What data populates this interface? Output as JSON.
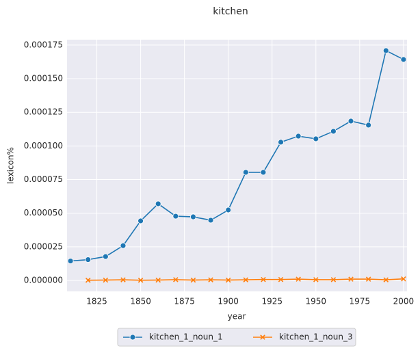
{
  "chart_data": {
    "type": "line",
    "title": "kitchen",
    "x_label": "year",
    "y_label": "lexicon%",
    "x": [
      1810,
      1820,
      1830,
      1840,
      1850,
      1860,
      1870,
      1880,
      1890,
      1900,
      1910,
      1920,
      1930,
      1940,
      1950,
      1960,
      1970,
      1980,
      1990,
      2000
    ],
    "series": [
      {
        "name": "kitchen_1_noun_1",
        "color": "#1f77b4",
        "marker": "circle",
        "values": [
          1.45e-05,
          1.55e-05,
          1.78e-05,
          2.59e-05,
          4.43e-05,
          5.7e-05,
          4.78e-05,
          4.73e-05,
          4.48e-05,
          5.24e-05,
          8.04e-05,
          8.04e-05,
          0.0001028,
          0.0001073,
          0.0001053,
          0.0001109,
          0.0001185,
          0.0001155,
          0.0001709,
          0.0001643
        ]
      },
      {
        "name": "kitchen_1_noun_3",
        "color": "#ff7f0e",
        "marker": "x",
        "values": [
          null,
          2e-07,
          3e-07,
          5e-07,
          2e-07,
          3e-07,
          6e-07,
          3e-07,
          5e-07,
          3e-07,
          5e-07,
          7e-07,
          7e-07,
          1e-06,
          6e-07,
          6e-07,
          1e-06,
          1e-06,
          5e-07,
          1.2e-06
        ]
      }
    ],
    "xlim": [
      1808,
      2002
    ],
    "ylim": [
      -8.1e-06,
      0.000179
    ],
    "xticks": [
      1825,
      1850,
      1875,
      1900,
      1925,
      1950,
      1975,
      2000
    ],
    "yticks": [
      {
        "value": 0,
        "label": "0.000000"
      },
      {
        "value": 2.5e-05,
        "label": "0.000025"
      },
      {
        "value": 5e-05,
        "label": "0.000050"
      },
      {
        "value": 7.5e-05,
        "label": "0.000075"
      },
      {
        "value": 0.0001,
        "label": "0.000100"
      },
      {
        "value": 0.000125,
        "label": "0.000125"
      },
      {
        "value": 0.00015,
        "label": "0.000150"
      },
      {
        "value": 0.000175,
        "label": "0.000175"
      }
    ],
    "grid": true,
    "legend": "lower center outside"
  }
}
